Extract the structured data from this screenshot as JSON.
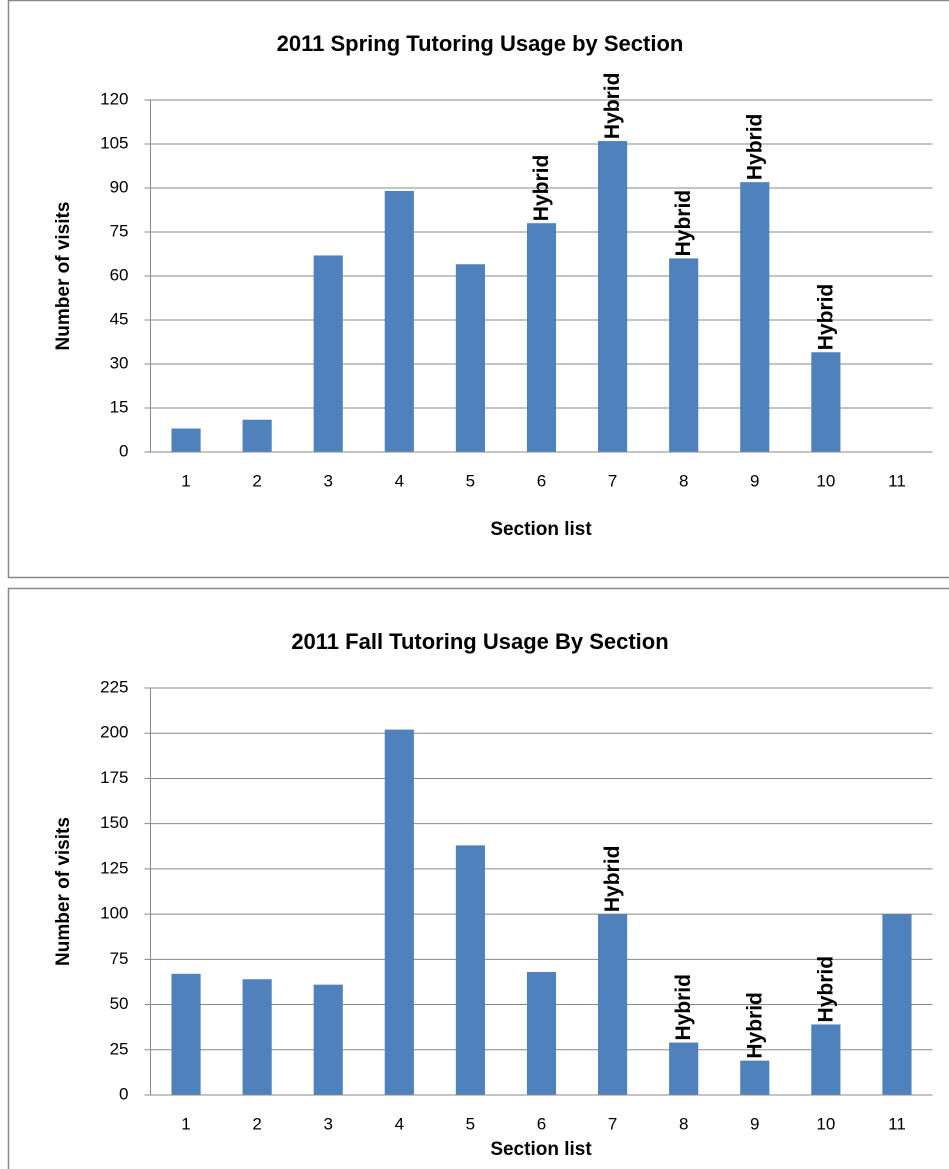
{
  "chart_data": [
    {
      "type": "bar",
      "title": "2011 Spring Tutoring Usage by Section",
      "x_label": "Section list",
      "y_label": "Number of visits",
      "categories": [
        "1",
        "2",
        "3",
        "4",
        "5",
        "6",
        "7",
        "8",
        "9",
        "10",
        "11"
      ],
      "values": [
        8,
        11,
        67,
        89,
        64,
        78,
        106,
        66,
        92,
        34,
        null
      ],
      "color": "#4f81bd",
      "ylim": [
        0,
        120
      ],
      "yticks": [
        0,
        15,
        30,
        45,
        60,
        75,
        90,
        105,
        120
      ],
      "grid": true,
      "annotations": [
        {
          "x": "6",
          "text": "Hybrid"
        },
        {
          "x": "7",
          "text": "Hybrid"
        },
        {
          "x": "8",
          "text": "Hybrid"
        },
        {
          "x": "9",
          "text": "Hybrid"
        },
        {
          "x": "10",
          "text": "Hybrid"
        }
      ],
      "annotation_color": "#ff0000"
    },
    {
      "type": "bar",
      "title": "2011 Fall Tutoring Usage By Section",
      "x_label": "Section list",
      "y_label": "Number of visits",
      "categories": [
        "1",
        "2",
        "3",
        "4",
        "5",
        "6",
        "7",
        "8",
        "9",
        "10",
        "11"
      ],
      "values": [
        67,
        64,
        61,
        202,
        138,
        68,
        100,
        29,
        19,
        39,
        100
      ],
      "color": "#4f81bd",
      "ylim": [
        0,
        225
      ],
      "yticks": [
        0,
        25,
        50,
        75,
        100,
        125,
        150,
        175,
        200,
        225
      ],
      "grid": true,
      "annotations": [
        {
          "x": "7",
          "text": "Hybrid"
        },
        {
          "x": "8",
          "text": "Hybrid"
        },
        {
          "x": "9",
          "text": "Hybrid"
        },
        {
          "x": "10",
          "text": "Hybrid"
        }
      ],
      "annotation_color": "#ff0000"
    }
  ]
}
